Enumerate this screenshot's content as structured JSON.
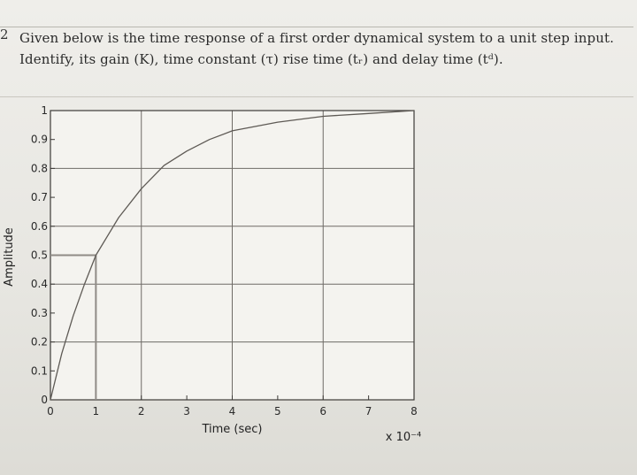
{
  "question": {
    "number": "2",
    "line1": "Given below is the time response of a first order dynamical system to a unit step input.",
    "line2": "Identify, its gain (K), time constant (τ) rise time (tᵣ) and delay time (tᵈ)."
  },
  "chart_data": {
    "type": "line",
    "title": "",
    "xlabel": "Time (sec)",
    "ylabel": "Amplitude",
    "x_multiplier": "x 10⁻⁴",
    "xlim": [
      0,
      8
    ],
    "ylim": [
      0,
      1
    ],
    "x_ticks": [
      "0",
      "1",
      "2",
      "3",
      "4",
      "5",
      "6",
      "7",
      "8"
    ],
    "y_ticks": [
      "0",
      "0.1",
      "0.2",
      "0.3",
      "0.4",
      "0.5",
      "0.6",
      "0.7",
      "0.8",
      "0.9",
      "1"
    ],
    "grid": true,
    "series": [
      {
        "x": [
          0,
          0.25,
          0.5,
          0.75,
          1,
          1.5,
          2,
          2.5,
          3,
          3.5,
          4,
          5,
          6,
          7,
          8
        ],
        "y": [
          0,
          0.16,
          0.29,
          0.4,
          0.5,
          0.63,
          0.73,
          0.81,
          0.86,
          0.9,
          0.93,
          0.96,
          0.98,
          0.99,
          1.0
        ]
      }
    ],
    "annotations": [
      {
        "type": "marker",
        "x": 1,
        "y": 0.5
      }
    ],
    "colors": {
      "curve": "#5e5a55",
      "grid": "#6e6b66",
      "marker": "#8f8b86"
    }
  }
}
